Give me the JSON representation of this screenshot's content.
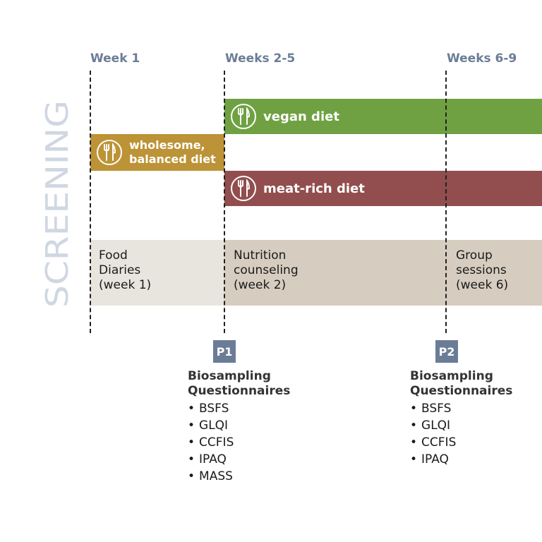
{
  "screening_label": "SCREENING",
  "weeks": [
    "Week 1",
    "Weeks 2-5",
    "Weeks 6-9"
  ],
  "diets": {
    "vegan": {
      "label": "vegan diet",
      "color": "#6fa142"
    },
    "wholesome": {
      "line1": "wholesome,",
      "line2": "balanced diet",
      "color": "#bc9336"
    },
    "meat": {
      "label": "meat-rich diet",
      "color": "#924e4e"
    }
  },
  "activities": [
    {
      "line1": "Food",
      "line2": "Diaries",
      "line3": "(week 1)"
    },
    {
      "line1": "Nutrition",
      "line2": "counseling",
      "line3": "(week 2)"
    },
    {
      "line1": "Group",
      "line2": "sessions",
      "line3": "(week 6)"
    }
  ],
  "colors": {
    "screening": "#cfd7e2",
    "week_label": "#6b7d96",
    "band_week1": "#e8e5de",
    "band_main": "#d6cdc0",
    "marker": "#6b7d96"
  },
  "points": [
    {
      "marker": "P1",
      "line1": "Biosampling",
      "line2": "Questionnaires",
      "items": [
        "BSFS",
        "GLQI",
        "CCFIS",
        "IPAQ",
        "MASS"
      ]
    },
    {
      "marker": "P2",
      "line1": "Biosampling",
      "line2": "Questionnaires",
      "items": [
        "BSFS",
        "GLQI",
        "CCFIS",
        "IPAQ"
      ]
    }
  ]
}
